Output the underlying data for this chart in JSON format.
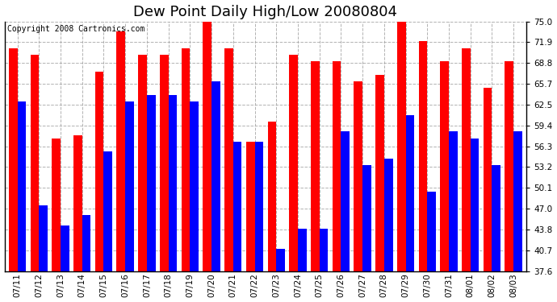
{
  "title": "Dew Point Daily High/Low 20080804",
  "copyright": "Copyright 2008 Cartronics.com",
  "categories": [
    "07/11",
    "07/12",
    "07/13",
    "07/14",
    "07/15",
    "07/16",
    "07/17",
    "07/18",
    "07/19",
    "07/20",
    "07/21",
    "07/22",
    "07/23",
    "07/24",
    "07/25",
    "07/26",
    "07/27",
    "07/28",
    "07/29",
    "07/30",
    "07/31",
    "08/01",
    "08/02",
    "08/03"
  ],
  "highs": [
    71.0,
    70.0,
    57.5,
    58.0,
    67.5,
    73.5,
    70.0,
    70.0,
    71.0,
    76.0,
    71.0,
    57.0,
    60.0,
    70.0,
    69.0,
    69.0,
    66.0,
    67.0,
    75.0,
    72.0,
    69.0,
    71.0,
    65.0,
    69.0
  ],
  "lows": [
    63.0,
    47.5,
    44.5,
    46.0,
    55.5,
    63.0,
    64.0,
    64.0,
    63.0,
    66.0,
    57.0,
    57.0,
    41.0,
    44.0,
    44.0,
    58.5,
    53.5,
    54.5,
    61.0,
    49.5,
    58.5,
    57.5,
    53.5,
    58.5
  ],
  "bar_color_high": "#ff0000",
  "bar_color_low": "#0000ff",
  "bg_color": "#ffffff",
  "grid_color": "#aaaaaa",
  "ytick_labels": [
    "37.6",
    "40.7",
    "43.8",
    "47.0",
    "50.1",
    "53.2",
    "56.3",
    "59.4",
    "62.5",
    "65.7",
    "68.8",
    "71.9",
    "75.0"
  ],
  "ytick_values": [
    37.6,
    40.7,
    43.8,
    47.0,
    50.1,
    53.2,
    56.3,
    59.4,
    62.5,
    65.7,
    68.8,
    71.9,
    75.0
  ],
  "ymin": 37.6,
  "ymax": 75.0,
  "title_fontsize": 13,
  "tick_fontsize": 7.5,
  "copyright_fontsize": 7
}
